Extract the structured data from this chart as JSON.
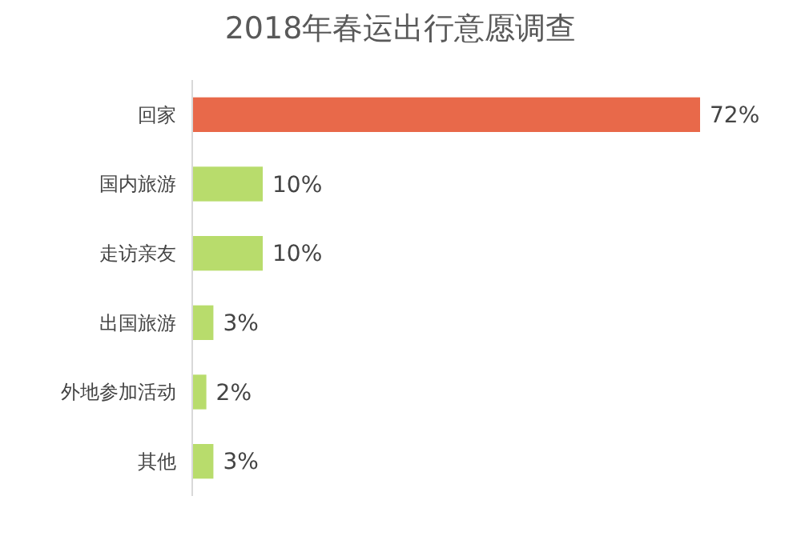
{
  "chart_data": {
    "type": "bar",
    "orientation": "horizontal",
    "title": "2018年春运出行意愿调查",
    "categories": [
      "回家",
      "国内旅游",
      "走访亲友",
      "出国旅游",
      "外地参加活动",
      "其他"
    ],
    "values": [
      72,
      10,
      10,
      3,
      2,
      3
    ],
    "value_labels": [
      "72%",
      "10%",
      "10%",
      "3%",
      "2%",
      "3%"
    ],
    "colors": [
      "#e8694a",
      "#b8dc6c",
      "#b8dc6c",
      "#b8dc6c",
      "#b8dc6c",
      "#b8dc6c"
    ]
  }
}
